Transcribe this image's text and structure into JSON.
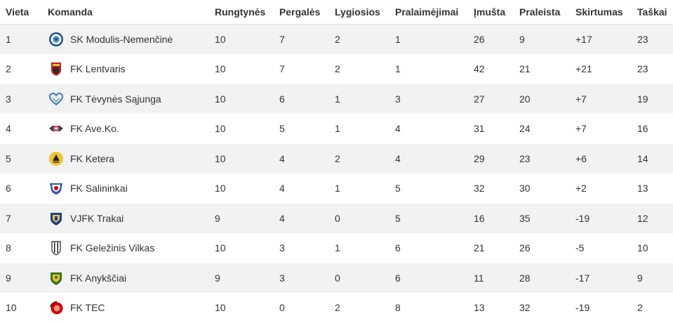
{
  "table": {
    "headers": [
      "Vieta",
      "Komanda",
      "Rungtynės",
      "Pergalės",
      "Lygiosios",
      "Pralaimėjimai",
      "Įmušta",
      "Praleista",
      "Skirtumas",
      "Taškai"
    ],
    "rows": [
      {
        "pos": "1",
        "team": "SK Modulis-Nemenčinė",
        "logo_icon": "sk-modulis-logo-icon",
        "played": "10",
        "wins": "7",
        "draws": "2",
        "losses": "1",
        "scored": "26",
        "conceded": "9",
        "diff": "+17",
        "points": "23"
      },
      {
        "pos": "2",
        "team": "FK Lentvaris",
        "logo_icon": "fk-lentvaris-logo-icon",
        "played": "10",
        "wins": "7",
        "draws": "2",
        "losses": "1",
        "scored": "42",
        "conceded": "21",
        "diff": "+21",
        "points": "23"
      },
      {
        "pos": "3",
        "team": "FK Tėvynės Sąjunga",
        "logo_icon": "fk-tevynes-sajunga-logo-icon",
        "played": "10",
        "wins": "6",
        "draws": "1",
        "losses": "3",
        "scored": "27",
        "conceded": "20",
        "diff": "+7",
        "points": "19"
      },
      {
        "pos": "4",
        "team": "FK Ave.Ko.",
        "logo_icon": "fk-aveko-logo-icon",
        "played": "10",
        "wins": "5",
        "draws": "1",
        "losses": "4",
        "scored": "31",
        "conceded": "24",
        "diff": "+7",
        "points": "16"
      },
      {
        "pos": "5",
        "team": "FK Ketera",
        "logo_icon": "fk-ketera-logo-icon",
        "played": "10",
        "wins": "4",
        "draws": "2",
        "losses": "4",
        "scored": "29",
        "conceded": "23",
        "diff": "+6",
        "points": "14"
      },
      {
        "pos": "6",
        "team": "FK Salininkai",
        "logo_icon": "fk-salininkai-logo-icon",
        "played": "10",
        "wins": "4",
        "draws": "1",
        "losses": "5",
        "scored": "32",
        "conceded": "30",
        "diff": "+2",
        "points": "13"
      },
      {
        "pos": "7",
        "team": "VJFK Trakai",
        "logo_icon": "vjfk-trakai-logo-icon",
        "played": "9",
        "wins": "4",
        "draws": "0",
        "losses": "5",
        "scored": "16",
        "conceded": "35",
        "diff": "-19",
        "points": "12"
      },
      {
        "pos": "8",
        "team": "FK Geležinis Vilkas",
        "logo_icon": "fk-gelezinis-vilkas-logo-icon",
        "played": "10",
        "wins": "3",
        "draws": "1",
        "losses": "6",
        "scored": "21",
        "conceded": "26",
        "diff": "-5",
        "points": "10"
      },
      {
        "pos": "9",
        "team": "FK Anykščiai",
        "logo_icon": "fk-anyksciai-logo-icon",
        "played": "9",
        "wins": "3",
        "draws": "0",
        "losses": "6",
        "scored": "11",
        "conceded": "28",
        "diff": "-17",
        "points": "9"
      },
      {
        "pos": "10",
        "team": "FK TEC",
        "logo_icon": "fk-tec-logo-icon",
        "played": "10",
        "wins": "0",
        "draws": "2",
        "losses": "8",
        "scored": "13",
        "conceded": "32",
        "diff": "-19",
        "points": "2"
      }
    ]
  }
}
